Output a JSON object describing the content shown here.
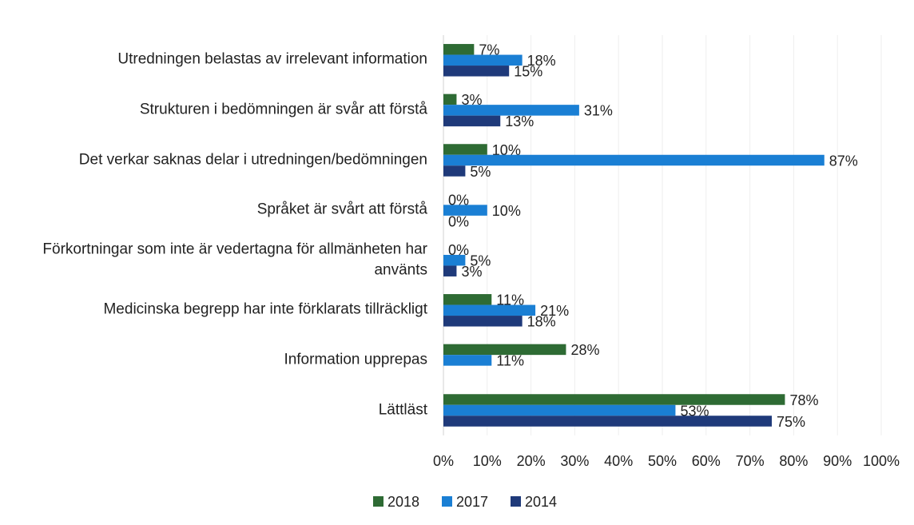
{
  "chart_data": {
    "type": "hbar",
    "categories": [
      "Utredningen belastas av irrelevant information",
      "Strukturen i bedömningen är svår att förstå",
      "Det verkar saknas delar i utredningen/bedömningen",
      "Språket är svårt att förstå",
      "Förkortningar som inte är vedertagna för allmänheten har använts",
      "Medicinska begrepp har inte förklarats tillräckligt",
      "Information upprepas",
      "Lättläst"
    ],
    "series": [
      {
        "name": "2018",
        "color": "#2e6b34",
        "values": [
          7,
          3,
          10,
          0,
          0,
          11,
          28,
          78
        ],
        "value_labels": [
          "7%",
          "3%",
          "10%",
          "0%",
          "0%",
          "11%",
          "28%",
          "78%"
        ]
      },
      {
        "name": "2017",
        "color": "#1a7fd4",
        "values": [
          18,
          31,
          87,
          10,
          5,
          21,
          11,
          53
        ],
        "value_labels": [
          "18%",
          "31%",
          "87%",
          "10%",
          "5%",
          "21%",
          "11%",
          "53%"
        ]
      },
      {
        "name": "2014",
        "color": "#1f3a7a",
        "values": [
          15,
          13,
          5,
          0,
          3,
          18,
          null,
          75
        ],
        "value_labels": [
          "15%",
          "13%",
          "5%",
          "0%",
          "3%",
          "18%",
          null,
          "75%"
        ]
      }
    ],
    "xlim": [
      0,
      100
    ],
    "xticks": [
      {
        "value": 0,
        "label": "0%"
      },
      {
        "value": 10,
        "label": "10%"
      },
      {
        "value": 20,
        "label": "20%"
      },
      {
        "value": 30,
        "label": "30%"
      },
      {
        "value": 40,
        "label": "40%"
      },
      {
        "value": 50,
        "label": "50%"
      },
      {
        "value": 60,
        "label": "60%"
      },
      {
        "value": 70,
        "label": "70%"
      },
      {
        "value": 80,
        "label": "80%"
      },
      {
        "value": 90,
        "label": "90%"
      },
      {
        "value": 100,
        "label": "100%"
      }
    ],
    "grid": true,
    "legend": "bottom"
  }
}
